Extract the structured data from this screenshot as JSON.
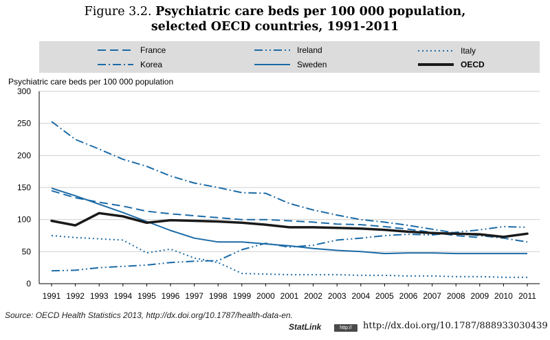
{
  "figure": {
    "label": "Figure 3.2.",
    "title_line1": "Psychiatric care beds per 100 000 population,",
    "title_line2": "selected OECD countries, 1991-2011"
  },
  "source": "Source: OECD Health Statistics 2013, http://dx.doi.org/10.1787/health-data-en.",
  "statlink": {
    "label": "StatLink",
    "logo_text": "http://",
    "url": "http://dx.doi.org/10.1787/888933030439"
  },
  "colors": {
    "series": "#1a6aa6",
    "oecd": "#1a1a1a",
    "legend_bg": "#dcdcdc",
    "grid": "#cfcfcf"
  },
  "chart_data": {
    "type": "line",
    "title": "Psychiatric care beds per 100 000 population, selected OECD countries, 1991-2011",
    "ylabel": "Psychiatric care beds per 100 000 population",
    "xlabel": "",
    "x": [
      "1991",
      "1992",
      "1993",
      "1994",
      "1995",
      "1996",
      "1997",
      "1998",
      "1999",
      "2000",
      "2001",
      "2002",
      "2003",
      "2004",
      "2005",
      "2006",
      "2007",
      "2008",
      "2009",
      "2010",
      "2011"
    ],
    "ylim": [
      0,
      300
    ],
    "yticks": [
      0,
      50,
      100,
      150,
      200,
      250,
      300
    ],
    "grid": "horizontal",
    "legend_position": "top",
    "series": [
      {
        "name": "France",
        "style": "dashed",
        "values": [
          145,
          134,
          127,
          121,
          113,
          109,
          106,
          103,
          100,
          100,
          98,
          96,
          93,
          92,
          89,
          85,
          80,
          75,
          72,
          null,
          null
        ]
      },
      {
        "name": "Ireland",
        "style": "dash-dot-dot",
        "values": [
          20,
          21,
          25,
          27,
          29,
          33,
          35,
          36,
          53,
          63,
          57,
          60,
          68,
          71,
          75,
          77,
          76,
          80,
          84,
          89,
          88
        ]
      },
      {
        "name": "Italy",
        "style": "dotted",
        "values": [
          75,
          72,
          70,
          68,
          48,
          54,
          40,
          33,
          16,
          15,
          14,
          14,
          14,
          13,
          13,
          12,
          12,
          11,
          11,
          10,
          10
        ]
      },
      {
        "name": "Korea",
        "style": "dash-dot",
        "values": [
          253,
          225,
          210,
          194,
          183,
          168,
          157,
          150,
          142,
          141,
          125,
          115,
          107,
          100,
          96,
          91,
          85,
          79,
          75,
          71,
          65
        ]
      },
      {
        "name": "Sweden",
        "style": "solid",
        "values": [
          149,
          137,
          124,
          111,
          97,
          83,
          71,
          65,
          65,
          62,
          59,
          55,
          52,
          50,
          47,
          48,
          48,
          47,
          47,
          47,
          47
        ]
      },
      {
        "name": "OECD",
        "style": "solid-thick",
        "values": [
          98,
          91,
          110,
          105,
          95,
          99,
          98,
          97,
          95,
          92,
          88,
          88,
          87,
          86,
          84,
          81,
          79,
          78,
          77,
          73,
          78
        ]
      }
    ]
  }
}
